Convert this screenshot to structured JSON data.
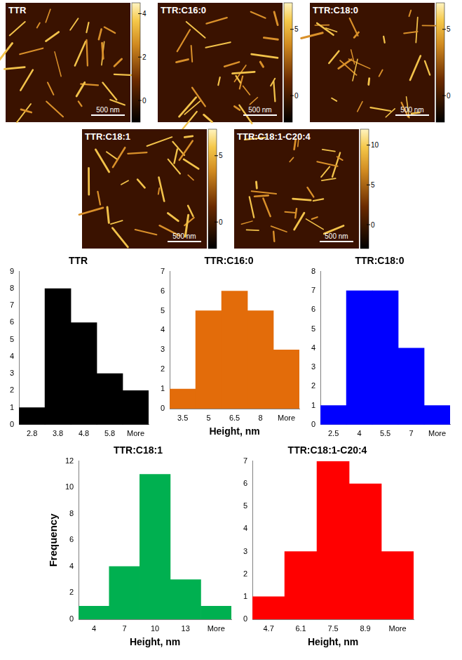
{
  "afm_images": [
    {
      "label": "TTR",
      "scale_bar": "500 nm",
      "colorbar_range": [
        -1,
        4.5
      ],
      "colorbar_ticks": [
        0,
        2,
        4
      ]
    },
    {
      "label": "TTR:C16:0",
      "scale_bar": "500 nm",
      "colorbar_range": [
        -2,
        7
      ],
      "colorbar_ticks": [
        0,
        5
      ]
    },
    {
      "label": "TTR:C18:0",
      "scale_bar": "500 nm",
      "colorbar_range": [
        -2,
        7
      ],
      "colorbar_ticks": [
        0,
        5
      ]
    },
    {
      "label": "TTR:C18:1",
      "scale_bar": "500 nm",
      "colorbar_range": [
        -2,
        7
      ],
      "colorbar_ticks": [
        0,
        5
      ]
    },
    {
      "label": "TTR:C18:1-C20:4",
      "scale_bar": "500 nm",
      "colorbar_range": [
        -3,
        12
      ],
      "colorbar_ticks": [
        0,
        5,
        10
      ]
    }
  ],
  "chart_data": [
    {
      "type": "bar",
      "title": "TTR",
      "categories": [
        "2.8",
        "3.8",
        "4.8",
        "5.8",
        "More"
      ],
      "values": [
        1,
        8,
        6,
        3,
        2
      ],
      "color": "#000000",
      "ylim": [
        0,
        9
      ],
      "yticks": [
        0,
        1,
        2,
        3,
        4,
        5,
        6,
        7,
        8,
        9
      ],
      "grid": false
    },
    {
      "type": "bar",
      "title": "TTR:C16:0",
      "xlabel": "Height, nm",
      "categories": [
        "3.5",
        "5",
        "6.5",
        "8",
        "More"
      ],
      "values": [
        1,
        5,
        6,
        5,
        3
      ],
      "color": "#e36c0a",
      "ylim": [
        0,
        7
      ],
      "yticks": [
        0,
        1,
        2,
        3,
        4,
        5,
        6,
        7
      ],
      "grid": false
    },
    {
      "type": "bar",
      "title": "TTR:C18:0",
      "categories": [
        "2.5",
        "4",
        "5.5",
        "7",
        "More"
      ],
      "values": [
        1,
        7,
        7,
        4,
        1
      ],
      "color": "#0000ff",
      "ylim": [
        0,
        8
      ],
      "yticks": [
        0,
        1,
        2,
        3,
        4,
        5,
        6,
        7,
        8
      ],
      "grid": false
    },
    {
      "type": "bar",
      "title": "TTR:C18:1",
      "xlabel": "Height, nm",
      "ylabel": "Frequency",
      "categories": [
        "4",
        "7",
        "10",
        "13",
        "More"
      ],
      "values": [
        1,
        4,
        11,
        3,
        1
      ],
      "color": "#00b050",
      "ylim": [
        0,
        12
      ],
      "yticks": [
        0,
        2,
        4,
        6,
        8,
        10,
        12
      ],
      "grid": false
    },
    {
      "type": "bar",
      "title": "TTR:C18:1-C20:4",
      "xlabel": "Height, nm",
      "categories": [
        "4.7",
        "6.1",
        "7.5",
        "8.9",
        "More"
      ],
      "values": [
        1,
        3,
        7,
        6,
        3
      ],
      "color": "#ff0000",
      "ylim": [
        0,
        7
      ],
      "yticks": [
        0,
        1,
        2,
        3,
        4,
        5,
        6,
        7
      ],
      "grid": false
    }
  ]
}
